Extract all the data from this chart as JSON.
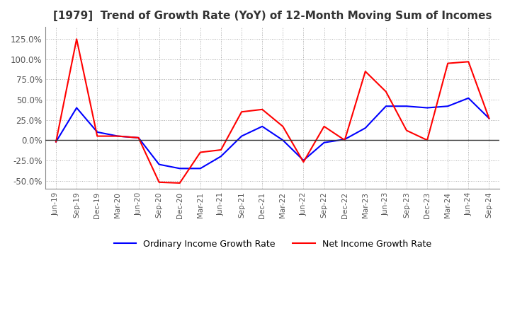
{
  "title": "[1979]  Trend of Growth Rate (YoY) of 12-Month Moving Sum of Incomes",
  "title_fontsize": 11,
  "ylim": [
    -60,
    140
  ],
  "yticks": [
    -50,
    -25,
    0,
    25,
    50,
    75,
    100,
    125
  ],
  "background_color": "#ffffff",
  "plot_bg_color": "#ffffff",
  "grid_color": "#aaaaaa",
  "legend_labels": [
    "Ordinary Income Growth Rate",
    "Net Income Growth Rate"
  ],
  "legend_colors": [
    "#0000ff",
    "#ff0000"
  ],
  "dates": [
    "Jun-19",
    "Sep-19",
    "Dec-19",
    "Mar-20",
    "Jun-20",
    "Sep-20",
    "Dec-20",
    "Mar-21",
    "Jun-21",
    "Sep-21",
    "Dec-21",
    "Mar-22",
    "Jun-22",
    "Sep-22",
    "Dec-22",
    "Mar-23",
    "Jun-23",
    "Sep-23",
    "Dec-23",
    "Mar-24",
    "Jun-24",
    "Sep-24"
  ],
  "ordinary_income": [
    -2,
    40,
    10,
    5,
    3,
    -30,
    -35,
    -35,
    -20,
    5,
    17,
    0,
    -25,
    -3,
    1,
    15,
    42,
    42,
    40,
    42,
    52,
    27
  ],
  "net_income": [
    -2,
    125,
    5,
    5,
    3,
    -52,
    -53,
    -15,
    -12,
    35,
    38,
    17,
    -27,
    17,
    0,
    85,
    60,
    12,
    0,
    95,
    97,
    27
  ],
  "line_width": 1.5
}
